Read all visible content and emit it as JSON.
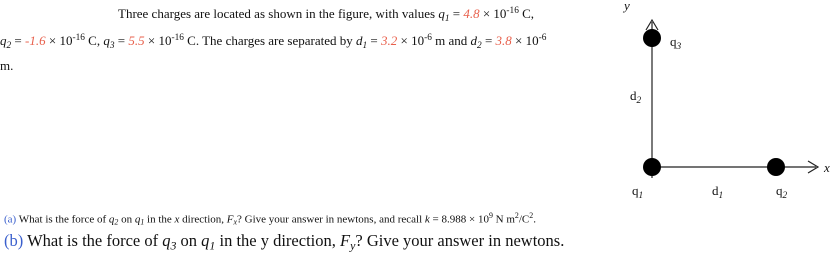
{
  "intro": [
    {
      "t": "Three charges are located as shown in the figure, with values ",
      "s": ""
    },
    {
      "t": "q",
      "s": "i"
    },
    {
      "t": "1",
      "s": "sub"
    },
    {
      "t": " = ",
      "s": ""
    },
    {
      "t": "4.8",
      "s": "red"
    },
    {
      "t": " × 10",
      "s": ""
    },
    {
      "t": "-16",
      "s": "sup"
    },
    {
      "t": " C, ",
      "s": ""
    },
    {
      "t": "q",
      "s": "i"
    },
    {
      "t": "2",
      "s": "sub"
    },
    {
      "t": " = ",
      "s": ""
    },
    {
      "t": "-1.6",
      "s": "red"
    },
    {
      "t": " × 10",
      "s": ""
    },
    {
      "t": "-16",
      "s": "sup"
    },
    {
      "t": " C, ",
      "s": ""
    },
    {
      "t": "q",
      "s": "i"
    },
    {
      "t": "3",
      "s": "sub"
    },
    {
      "t": " = ",
      "s": ""
    },
    {
      "t": "5.5",
      "s": "red"
    },
    {
      "t": " × 10",
      "s": ""
    },
    {
      "t": "-16",
      "s": "sup"
    },
    {
      "t": " C. The charges are separated by ",
      "s": ""
    },
    {
      "t": "d",
      "s": "i"
    },
    {
      "t": "1",
      "s": "sub"
    },
    {
      "t": " = ",
      "s": ""
    },
    {
      "t": "3.2",
      "s": "red"
    },
    {
      "t": " × 10",
      "s": ""
    },
    {
      "t": "-6",
      "s": "sup"
    },
    {
      "t": " m and ",
      "s": ""
    },
    {
      "t": "d",
      "s": "i"
    },
    {
      "t": "2",
      "s": "sub"
    },
    {
      "t": " = ",
      "s": ""
    },
    {
      "t": "3.8",
      "s": "red"
    },
    {
      "t": " × 10",
      "s": ""
    },
    {
      "t": "-6",
      "s": "sup"
    },
    {
      "t": " m.",
      "s": ""
    }
  ],
  "figure": {
    "y_axis": [
      {
        "t": "y",
        "s": "i"
      }
    ],
    "x_axis": [
      {
        "t": "x",
        "s": "i"
      }
    ],
    "q3": [
      {
        "t": "q",
        "s": ""
      },
      {
        "t": "3",
        "s": "sub"
      }
    ],
    "d2": [
      {
        "t": "d",
        "s": ""
      },
      {
        "t": "2",
        "s": "sub"
      }
    ],
    "q1": [
      {
        "t": "q",
        "s": ""
      },
      {
        "t": "1",
        "s": "sub"
      }
    ],
    "d1": [
      {
        "t": "d",
        "s": ""
      },
      {
        "t": "1",
        "s": "sub"
      }
    ],
    "q2": [
      {
        "t": "q",
        "s": ""
      },
      {
        "t": "2",
        "s": "sub"
      }
    ]
  },
  "question_a": [
    {
      "t": "(a)",
      "s": "blue"
    },
    {
      "t": " What is the force of ",
      "s": ""
    },
    {
      "t": "q",
      "s": "i"
    },
    {
      "t": "2",
      "s": "sub"
    },
    {
      "t": " on ",
      "s": ""
    },
    {
      "t": "q",
      "s": "i"
    },
    {
      "t": "1",
      "s": "sub"
    },
    {
      "t": " in the ",
      "s": ""
    },
    {
      "t": "x",
      "s": "i"
    },
    {
      "t": " direction, ",
      "s": ""
    },
    {
      "t": "F",
      "s": "i"
    },
    {
      "t": "x",
      "s": "sub"
    },
    {
      "t": "? Give your answer in newtons, and recall ",
      "s": ""
    },
    {
      "t": "k",
      "s": "i"
    },
    {
      "t": " = 8.988 × 10",
      "s": ""
    },
    {
      "t": "9",
      "s": "sup"
    },
    {
      "t": " N m",
      "s": ""
    },
    {
      "t": "2",
      "s": "sup"
    },
    {
      "t": "/C",
      "s": ""
    },
    {
      "t": "2",
      "s": "sup"
    },
    {
      "t": ".",
      "s": ""
    }
  ],
  "question_b": [
    {
      "t": "(b)",
      "s": "blue"
    },
    {
      "t": " What is the force of ",
      "s": ""
    },
    {
      "t": "q",
      "s": "i"
    },
    {
      "t": "3",
      "s": "sub"
    },
    {
      "t": " on ",
      "s": ""
    },
    {
      "t": "q",
      "s": "i"
    },
    {
      "t": "1",
      "s": "sub"
    },
    {
      "t": " in the y direction, ",
      "s": ""
    },
    {
      "t": "F",
      "s": "i"
    },
    {
      "t": "y",
      "s": "sub"
    },
    {
      "t": "? Give your answer in newtons.",
      "s": ""
    }
  ]
}
